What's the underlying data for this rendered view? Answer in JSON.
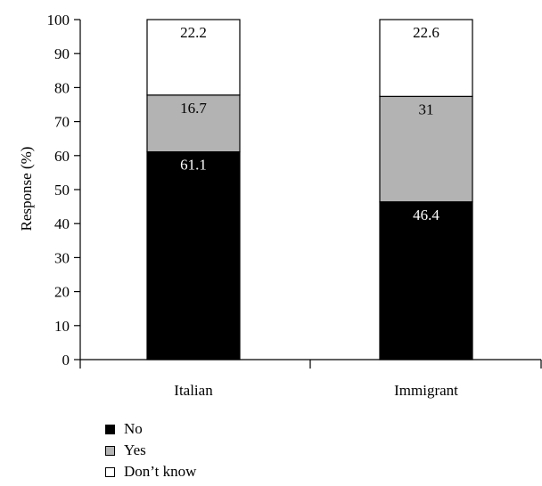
{
  "chart_data": {
    "type": "bar",
    "stacked": true,
    "categories": [
      "Italian",
      "Immigrant"
    ],
    "series": [
      {
        "name": "No",
        "values": [
          61.1,
          46.4
        ],
        "color": "#000000",
        "label_color": "#ffffff"
      },
      {
        "name": "Yes",
        "values": [
          16.7,
          31
        ],
        "color": "#b3b3b3",
        "label_color": "#000000"
      },
      {
        "name": "Don’t know",
        "values": [
          22.2,
          22.6
        ],
        "color": "#ffffff",
        "label_color": "#000000"
      }
    ],
    "title": "",
    "xlabel": "",
    "ylabel": "Response (%)",
    "ylim": [
      0,
      100
    ],
    "yticks": [
      0,
      10,
      20,
      30,
      40,
      50,
      60,
      70,
      80,
      90,
      100
    ],
    "grid": false,
    "legend_position": "bottom-left"
  }
}
